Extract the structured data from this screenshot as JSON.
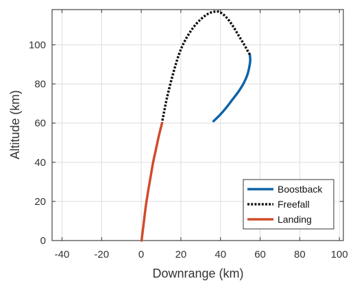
{
  "chart_data": {
    "type": "line",
    "title": "",
    "xlabel": "Downrange (km)",
    "ylabel": "Altitude (km)",
    "xlim": [
      -45,
      102
    ],
    "ylim": [
      0,
      118
    ],
    "xticks": [
      -40,
      -20,
      0,
      20,
      40,
      60,
      80,
      100
    ],
    "yticks": [
      0,
      20,
      40,
      60,
      80,
      100
    ],
    "grid": true,
    "legend_position": "lower-right",
    "series": [
      {
        "name": "Boostback",
        "color": "#0d63a8",
        "style": "solid",
        "points": [
          [
            36.5,
            61
          ],
          [
            40,
            64.5
          ],
          [
            43,
            68
          ],
          [
            46,
            72
          ],
          [
            49,
            76
          ],
          [
            51.5,
            80
          ],
          [
            53.5,
            84.5
          ],
          [
            54.5,
            88.5
          ],
          [
            55,
            92
          ],
          [
            54.8,
            95
          ]
        ]
      },
      {
        "name": "Freefall",
        "color": "#111111",
        "style": "dotted",
        "points": [
          [
            54.8,
            95
          ],
          [
            52,
            100
          ],
          [
            49,
            105
          ],
          [
            46,
            110
          ],
          [
            43,
            114
          ],
          [
            40,
            116.5
          ],
          [
            37.5,
            117
          ],
          [
            34,
            116
          ],
          [
            30,
            113
          ],
          [
            26,
            108.5
          ],
          [
            22,
            102
          ],
          [
            19,
            95
          ],
          [
            16,
            85
          ],
          [
            13,
            73
          ],
          [
            11,
            63
          ],
          [
            10.5,
            60
          ]
        ]
      },
      {
        "name": "Landing",
        "color": "#d14b2a",
        "style": "solid",
        "points": [
          [
            10.5,
            60
          ],
          [
            9,
            54
          ],
          [
            7.5,
            47
          ],
          [
            6,
            40
          ],
          [
            4.8,
            33
          ],
          [
            3.6,
            26
          ],
          [
            2.5,
            19
          ],
          [
            1.6,
            12
          ],
          [
            0.9,
            6
          ],
          [
            0.4,
            2
          ],
          [
            0.2,
            0
          ]
        ]
      }
    ]
  }
}
